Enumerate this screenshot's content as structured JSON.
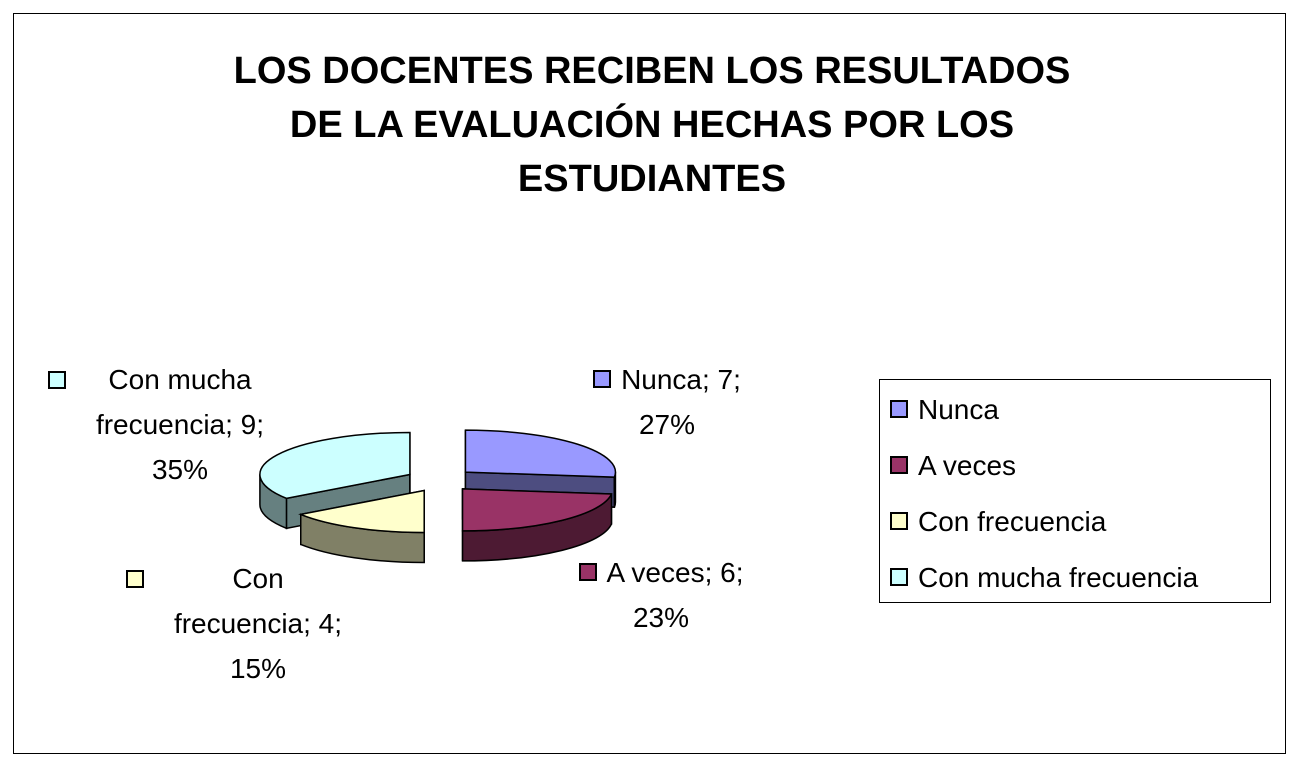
{
  "chart_data": {
    "type": "pie",
    "title": [
      "LOS DOCENTES RECIBEN LOS RESULTADOS",
      "DE LA EVALUACIÓN HECHAS POR LOS",
      "ESTUDIANTES"
    ],
    "categories": [
      "Nunca",
      "A veces",
      "Con frecuencia",
      "Con mucha frecuencia"
    ],
    "values": [
      7,
      6,
      4,
      9
    ],
    "percentages": [
      "27%",
      "23%",
      "15%",
      "35%"
    ],
    "colors": [
      "#9999ff",
      "#993366",
      "#ffffcc",
      "#ccffff"
    ],
    "legend_position": "right",
    "data_labels": [
      [
        "Nunca; 7;",
        "27%"
      ],
      [
        "A veces; 6;",
        "23%"
      ],
      [
        "Con",
        "frecuencia; 4;",
        "15%"
      ],
      [
        "Con mucha",
        "frecuencia; 9;",
        "35%"
      ]
    ]
  }
}
